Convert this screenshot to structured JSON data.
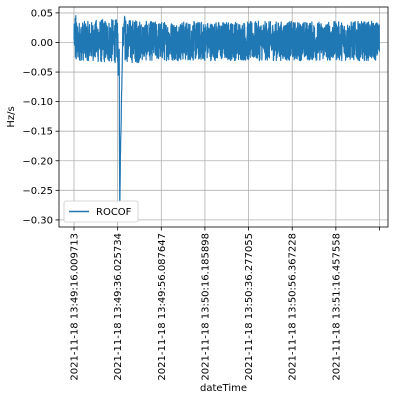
{
  "chart_data": {
    "type": "line",
    "title": "",
    "xlabel": "dateTime",
    "ylabel": "Hz/s",
    "x_tick_labels": [
      "2021-11-18 13:49:16.009713",
      "2021-11-18 13:49:36.025734",
      "2021-11-18 13:49:56.087647",
      "2021-11-18 13:50:16.185898",
      "2021-11-18 13:50:36.277055",
      "2021-11-18 13:50:56.367228",
      "2021-11-18 13:51:16.457558",
      ""
    ],
    "y_ticks": [
      0.05,
      0.0,
      -0.05,
      -0.1,
      -0.15,
      -0.2,
      -0.25,
      -0.3
    ],
    "y_tick_labels": [
      "0.05",
      "0.00",
      "−0.05",
      "−0.10",
      "−0.15",
      "−0.20",
      "−0.25",
      "−0.30"
    ],
    "ylim": [
      -0.312,
      0.06
    ],
    "grid": true,
    "legend_position": "lower-left",
    "series": [
      {
        "name": "ROCOF",
        "color": "#1f77b4",
        "noise_band": [
          -0.03,
          0.04
        ],
        "x_range_seconds": [
          0,
          140
        ],
        "features": [
          {
            "time": "2021-11-18 13:49:16.009713",
            "value": 0.0
          },
          {
            "time": "2021-11-18 13:49:36",
            "value": -0.01
          },
          {
            "time": "2021-11-18 13:49:36.8",
            "value": -0.16
          },
          {
            "time": "2021-11-18 13:49:36.9",
            "value": -0.295
          },
          {
            "time": "2021-11-18 13:49:37.2",
            "value": -0.1
          },
          {
            "time": "2021-11-18 13:49:37.5",
            "value": -0.02
          },
          {
            "time": "2021-11-18 13:49:38",
            "value": 0.045
          },
          {
            "time": "2021-11-18 13:51:16.457558",
            "value": 0.0
          }
        ]
      }
    ]
  }
}
